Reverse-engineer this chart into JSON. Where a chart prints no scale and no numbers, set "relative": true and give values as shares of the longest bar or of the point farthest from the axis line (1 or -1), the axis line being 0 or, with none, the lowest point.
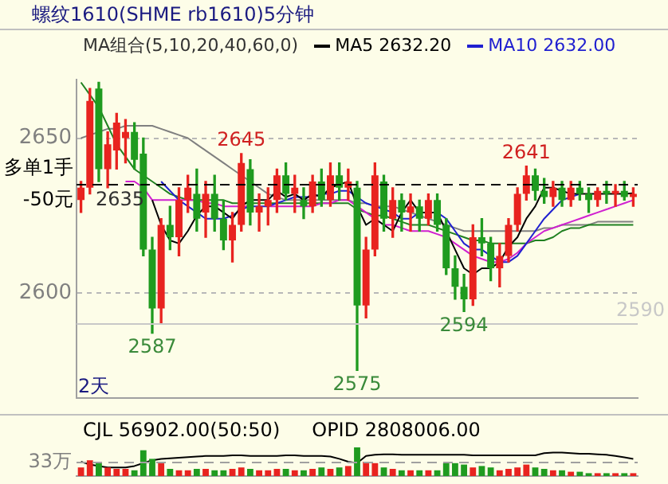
{
  "chart_data": [
    {
      "type": "candlestick",
      "title": "螺纹1610(SHME rb1610)5分钟",
      "legend_title": "MA组合(5,10,20,40,60,0)",
      "legend": "top",
      "xlabel": "2天",
      "grid": "y",
      "categories": [
        null,
        null,
        null,
        null,
        null,
        null,
        null,
        null,
        null,
        null,
        null,
        null,
        null,
        null,
        null,
        null,
        null,
        null,
        null,
        null,
        null,
        null,
        null,
        null,
        null,
        null,
        null,
        null,
        null,
        null,
        null,
        null,
        null,
        null,
        null,
        null,
        null,
        null,
        null,
        null,
        null,
        null,
        null,
        null,
        null,
        null,
        null,
        null,
        null,
        null,
        null,
        null,
        null,
        null,
        null,
        null,
        null,
        null,
        null,
        null,
        null,
        null,
        null
      ],
      "ohlc": [
        [
          2630,
          2636,
          2626,
          2634
        ],
        [
          2634,
          2666,
          2632,
          2662
        ],
        [
          2666,
          2668,
          2636,
          2640
        ],
        [
          2640,
          2652,
          2634,
          2648
        ],
        [
          2646,
          2658,
          2640,
          2655
        ],
        [
          2650,
          2656,
          2642,
          2652
        ],
        [
          2652,
          2655,
          2640,
          2643
        ],
        [
          2645,
          2650,
          2612,
          2614
        ],
        [
          2614,
          2618,
          2587,
          2595
        ],
        [
          2595,
          2624,
          2590,
          2622
        ],
        [
          2622,
          2628,
          2614,
          2618
        ],
        [
          2618,
          2634,
          2612,
          2630
        ],
        [
          2630,
          2638,
          2626,
          2634
        ],
        [
          2632,
          2640,
          2620,
          2624
        ],
        [
          2626,
          2636,
          2618,
          2632
        ],
        [
          2632,
          2638,
          2620,
          2624
        ],
        [
          2624,
          2630,
          2614,
          2617
        ],
        [
          2617,
          2626,
          2610,
          2622
        ],
        [
          2622,
          2645,
          2620,
          2642
        ],
        [
          2640,
          2643,
          2622,
          2626
        ],
        [
          2626,
          2632,
          2620,
          2628
        ],
        [
          2628,
          2634,
          2622,
          2630
        ],
        [
          2630,
          2640,
          2626,
          2638
        ],
        [
          2638,
          2642,
          2630,
          2632
        ],
        [
          2632,
          2638,
          2626,
          2634
        ],
        [
          2630,
          2634,
          2624,
          2628
        ],
        [
          2628,
          2638,
          2626,
          2636
        ],
        [
          2636,
          2640,
          2628,
          2630
        ],
        [
          2630,
          2642,
          2628,
          2638
        ],
        [
          2638,
          2642,
          2630,
          2634
        ],
        [
          2634,
          2640,
          2630,
          2636
        ],
        [
          2634,
          2636,
          2575,
          2596
        ],
        [
          2596,
          2618,
          2592,
          2614
        ],
        [
          2614,
          2642,
          2612,
          2638
        ],
        [
          2636,
          2638,
          2620,
          2624
        ],
        [
          2624,
          2634,
          2618,
          2630
        ],
        [
          2630,
          2632,
          2620,
          2626
        ],
        [
          2626,
          2632,
          2620,
          2628
        ],
        [
          2628,
          2630,
          2620,
          2624
        ],
        [
          2624,
          2632,
          2622,
          2630
        ],
        [
          2630,
          2632,
          2620,
          2622
        ],
        [
          2622,
          2624,
          2606,
          2608
        ],
        [
          2608,
          2612,
          2598,
          2602
        ],
        [
          2602,
          2606,
          2594,
          2598
        ],
        [
          2598,
          2622,
          2596,
          2618
        ],
        [
          2618,
          2624,
          2612,
          2616
        ],
        [
          2616,
          2618,
          2604,
          2608
        ],
        [
          2608,
          2616,
          2602,
          2612
        ],
        [
          2612,
          2624,
          2610,
          2622
        ],
        [
          2622,
          2634,
          2620,
          2632
        ],
        [
          2632,
          2641,
          2630,
          2638
        ],
        [
          2638,
          2640,
          2630,
          2633
        ],
        [
          2633,
          2637,
          2629,
          2631
        ],
        [
          2631,
          2636,
          2628,
          2634
        ],
        [
          2634,
          2636,
          2628,
          2630
        ],
        [
          2630,
          2636,
          2628,
          2634
        ],
        [
          2634,
          2636,
          2630,
          2632
        ],
        [
          2632,
          2634,
          2626,
          2630
        ],
        [
          2630,
          2634,
          2628,
          2633
        ],
        [
          2633,
          2636,
          2629,
          2632
        ],
        [
          2632,
          2635,
          2628,
          2633
        ],
        [
          2633,
          2636,
          2630,
          2631
        ],
        [
          2631,
          2634,
          2628,
          2632
        ]
      ],
      "colors": [
        "#e8231f",
        "#e8231f",
        "#1f9b1f",
        "#e8231f",
        "#e8231f",
        "#e8231f",
        "#1f9b1f",
        "#1f9b1f",
        "#1f9b1f",
        "#e8231f",
        "#1f9b1f",
        "#e8231f",
        "#e8231f",
        "#1f9b1f",
        "#e8231f",
        "#1f9b1f",
        "#1f9b1f",
        "#e8231f",
        "#e8231f",
        "#1f9b1f",
        "#e8231f",
        "#e8231f",
        "#e8231f",
        "#1f9b1f",
        "#e8231f",
        "#1f9b1f",
        "#e8231f",
        "#1f9b1f",
        "#e8231f",
        "#1f9b1f",
        "#e8231f",
        "#1f9b1f",
        "#e8231f",
        "#e8231f",
        "#1f9b1f",
        "#e8231f",
        "#1f9b1f",
        "#e8231f",
        "#1f9b1f",
        "#e8231f",
        "#1f9b1f",
        "#1f9b1f",
        "#1f9b1f",
        "#1f9b1f",
        "#e8231f",
        "#1f9b1f",
        "#1f9b1f",
        "#e8231f",
        "#e8231f",
        "#e8231f",
        "#e8231f",
        "#1f9b1f",
        "#1f9b1f",
        "#e8231f",
        "#1f9b1f",
        "#e8231f",
        "#1f9b1f",
        "#1f9b1f",
        "#e8231f",
        "#1f9b1f",
        "#e8231f",
        "#1f9b1f",
        "#e8231f"
      ],
      "series": [
        {
          "type": "line",
          "name": "MA5 2632.20",
          "color": "#000000",
          "values": [
            null,
            null,
            null,
            null,
            null,
            null,
            null,
            null,
            2630,
            2622,
            2617,
            2616,
            2620,
            2625,
            2628,
            2628,
            2626,
            2624,
            2628,
            2630,
            2630,
            2630,
            2633,
            2631,
            2632,
            2630,
            2632,
            2631,
            2634,
            2635,
            2636,
            2628,
            2622,
            2624,
            2622,
            2620,
            2626,
            2630,
            2626,
            2626,
            2626,
            2620,
            2614,
            2608,
            2606,
            2608,
            2608,
            2610,
            2615,
            2618,
            2624,
            2628,
            2634,
            2634,
            2633,
            2632,
            2632,
            2632,
            2632,
            2632,
            2632,
            2632,
            2632.2
          ]
        },
        {
          "type": "line",
          "name": "MA10 2632.00",
          "color": "#2020d0",
          "values": [
            null,
            null,
            null,
            null,
            null,
            null,
            null,
            null,
            null,
            2636,
            2633,
            2630,
            2628,
            2626,
            2624,
            2624,
            2624,
            2625,
            2627,
            2628,
            2628,
            2628,
            2629,
            2630,
            2631,
            2631,
            2631,
            2632,
            2632,
            2633,
            2633,
            2631,
            2629,
            2628,
            2627,
            2626,
            2624,
            2624,
            2626,
            2626,
            2626,
            2624,
            2620,
            2616,
            2614,
            2614,
            2612,
            2610,
            2610,
            2612,
            2616,
            2620,
            2624,
            2627,
            2630,
            2631,
            2632,
            null,
            null,
            null,
            null,
            null,
            null
          ]
        },
        {
          "type": "line",
          "color": "#d020d0",
          "values": [
            null,
            null,
            null,
            null,
            null,
            2636,
            2636,
            2634,
            2630,
            2630,
            2630,
            2630,
            2630,
            2630,
            2629,
            2629,
            2628,
            2628,
            2628,
            2628,
            null,
            2628,
            2628,
            2628,
            2628,
            2628,
            2628,
            2629,
            2629,
            2630,
            2630,
            2628,
            2626,
            2624,
            2622,
            2622,
            2621,
            2620,
            2620,
            2620,
            2619,
            2618,
            2616,
            2614,
            2612,
            2611,
            2610,
            2610,
            2611,
            2613,
            2616,
            2618,
            2620,
            2621,
            2622,
            2623,
            2624,
            2625,
            2626,
            2627,
            2628,
            2629,
            2630
          ]
        },
        {
          "type": "line",
          "color": "#208020",
          "values": [
            2668,
            2664,
            2660,
            2654,
            2648,
            2644,
            2640,
            2638,
            2636,
            2634,
            2632,
            2631,
            2630,
            2630,
            2630,
            2630,
            2630,
            2629,
            2629,
            2629,
            2629,
            2629,
            2629,
            2629,
            2629,
            2629,
            2629,
            2629,
            2629,
            2629,
            2629,
            2627,
            2626,
            2625,
            2625,
            2624,
            2623,
            2622,
            2622,
            2622,
            2621,
            2620,
            2619,
            2618,
            2617,
            2617,
            2616,
            2616,
            2616,
            2616,
            2616,
            2617,
            2617,
            2618,
            2620,
            2621,
            2621,
            2622,
            2622,
            2622,
            2622,
            2622,
            2622
          ]
        },
        {
          "type": "line",
          "color": "#808080",
          "values": [
            2650,
            2651,
            2652,
            2653,
            2653,
            2654,
            2654,
            2654,
            2654,
            2653,
            2652,
            2651,
            2650,
            2648,
            2646,
            2644,
            2642,
            2640,
            2638,
            2636,
            2634,
            2632,
            2631,
            2630,
            2630,
            2630,
            2630,
            2630,
            2630,
            2630,
            2630,
            2629,
            2629,
            2628,
            2628,
            2628,
            2627,
            2626,
            2625,
            2624,
            2623,
            2622,
            2621,
            2620,
            2620,
            2620,
            2620,
            2620,
            2620,
            2620,
            2620,
            2620,
            2621,
            2621,
            2622,
            2622,
            2622,
            2622,
            2623,
            2623,
            2623,
            2623,
            2623
          ]
        }
      ],
      "ylim": [
        2566,
        2669
      ],
      "yticks": [
        2600,
        2650
      ],
      "ref_lines": [
        {
          "axis": "y",
          "value": 2635,
          "label": "2635",
          "color": "#000000",
          "line_style": "dashed"
        },
        {
          "axis": "y",
          "value": 2590,
          "label": "2590",
          "color": "#c8c8c8"
        }
      ],
      "annotations": [
        {
          "text": "2645",
          "y": 2645
        },
        {
          "text": "2587",
          "y": 2587
        },
        {
          "text": "2575",
          "y": 2575
        },
        {
          "text": "2594",
          "y": 2594
        },
        {
          "text": "2641",
          "y": 2641
        },
        "多单1手",
        "-50元"
      ]
    },
    {
      "type": "bar",
      "title": "CJL 56902.00(50:50)",
      "relative": true,
      "categories": [
        null,
        null,
        null,
        null,
        null,
        null,
        null,
        null,
        null,
        null,
        null,
        null,
        null,
        null,
        null,
        null,
        null,
        null,
        null,
        null,
        null,
        null,
        null,
        null,
        null,
        null,
        null,
        null,
        null,
        null,
        null,
        null,
        null,
        null,
        null,
        null,
        null,
        null,
        null,
        null,
        null,
        null,
        null,
        null,
        null,
        null,
        null,
        null,
        null,
        null,
        null,
        null,
        null,
        null,
        null,
        null,
        null,
        null,
        null,
        null,
        null,
        null,
        null
      ],
      "series": [
        {
          "type": "bar",
          "values": [
            0.3,
            0.55,
            0.45,
            0.3,
            0.25,
            0.25,
            0.2,
            0.9,
            0.6,
            0.45,
            0.25,
            0.2,
            0.2,
            0.25,
            0.25,
            0.2,
            0.2,
            0.25,
            0.3,
            0.25,
            0.2,
            0.2,
            0.25,
            0.25,
            0.2,
            0.2,
            0.25,
            0.3,
            0.25,
            0.3,
            0.35,
            1,
            0.5,
            0.45,
            0.3,
            0.25,
            0.2,
            0.2,
            0.2,
            0.2,
            0.2,
            0.45,
            0.45,
            0.4,
            0.3,
            0.35,
            0.3,
            0.2,
            0.25,
            0.3,
            0.4,
            0.3,
            0.25,
            0.2,
            0.2,
            0.15,
            0.15,
            0.1,
            0.1,
            0.1,
            0.1,
            0.1,
            0.1
          ],
          "colors": [
            "#e8231f",
            "#e8231f",
            "#1f9b1f",
            "#e8231f",
            "#e8231f",
            "#e8231f",
            "#1f9b1f",
            "#1f9b1f",
            "#1f9b1f",
            "#e8231f",
            "#1f9b1f",
            "#e8231f",
            "#e8231f",
            "#1f9b1f",
            "#e8231f",
            "#1f9b1f",
            "#1f9b1f",
            "#e8231f",
            "#e8231f",
            "#1f9b1f",
            "#e8231f",
            "#e8231f",
            "#e8231f",
            "#1f9b1f",
            "#e8231f",
            "#1f9b1f",
            "#e8231f",
            "#1f9b1f",
            "#e8231f",
            "#1f9b1f",
            "#e8231f",
            "#1f9b1f",
            "#e8231f",
            "#e8231f",
            "#1f9b1f",
            "#e8231f",
            "#1f9b1f",
            "#e8231f",
            "#1f9b1f",
            "#e8231f",
            "#1f9b1f",
            "#1f9b1f",
            "#1f9b1f",
            "#1f9b1f",
            "#e8231f",
            "#1f9b1f",
            "#1f9b1f",
            "#e8231f",
            "#e8231f",
            "#e8231f",
            "#e8231f",
            "#1f9b1f",
            "#1f9b1f",
            "#e8231f",
            "#1f9b1f",
            "#e8231f",
            "#1f9b1f",
            "#1f9b1f",
            "#e8231f",
            "#1f9b1f",
            "#e8231f",
            "#1f9b1f",
            "#e8231f"
          ]
        },
        {
          "type": "line",
          "color": "#000000",
          "values": [
            0.5,
            0.4,
            0.35,
            0.3,
            0.3,
            0.3,
            0.35,
            0.45,
            0.55,
            0.6,
            0.62,
            0.64,
            0.66,
            0.68,
            0.7,
            0.7,
            0.7,
            0.72,
            0.72,
            0.7,
            0.7,
            0.7,
            0.7,
            0.72,
            0.72,
            0.7,
            0.7,
            0.7,
            0.68,
            0.6,
            0.5,
            0.45,
            0.7,
            0.74,
            0.76,
            0.76,
            0.74,
            0.74,
            0.74,
            0.74,
            0.74,
            0.74,
            0.74,
            0.74,
            0.72,
            0.72,
            0.72,
            0.72,
            0.72,
            0.72,
            0.72,
            0.72,
            0.8,
            0.82,
            0.82,
            0.8,
            0.78,
            0.78,
            0.76,
            0.74,
            0.7,
            0.65,
            0.6
          ]
        }
      ],
      "ref_lines": [
        {
          "axis": "y",
          "value": 0.47,
          "label": "33万",
          "color": "#a0a0a0",
          "line_style": "dashed"
        }
      ],
      "annotations": [
        "OPID 2808006.00"
      ]
    }
  ]
}
